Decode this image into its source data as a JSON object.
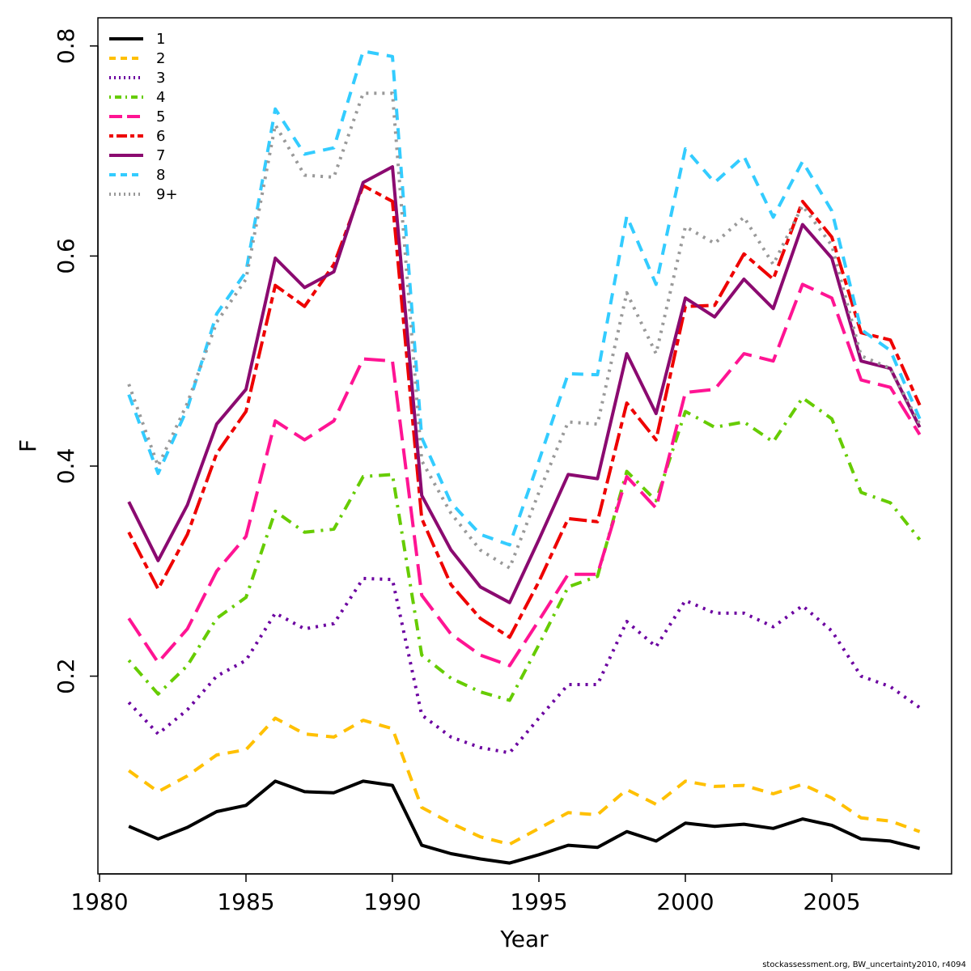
{
  "chart_data": {
    "type": "line",
    "xlabel": "Year",
    "ylabel": "F",
    "xlim": [
      1980,
      2009
    ],
    "ylim": [
      0.0,
      0.8
    ],
    "x_ticks": [
      1980,
      1985,
      1990,
      1995,
      2000,
      2005
    ],
    "y_ticks": [
      0.2,
      0.4,
      0.6,
      0.8
    ],
    "legend_position": "top-left",
    "grid": false,
    "x": [
      1981,
      1982,
      1983,
      1984,
      1985,
      1986,
      1987,
      1988,
      1989,
      1990,
      1991,
      1992,
      1993,
      1994,
      1995,
      1996,
      1997,
      1998,
      1999,
      2000,
      2001,
      2002,
      2003,
      2004,
      2005,
      2006,
      2007,
      2008
    ],
    "series": [
      {
        "name": "1",
        "color": "#000000",
        "dash": "solid",
        "values": [
          0.057,
          0.045,
          0.056,
          0.071,
          0.077,
          0.1,
          0.09,
          0.089,
          0.1,
          0.096,
          0.039,
          0.031,
          0.026,
          0.022,
          0.03,
          0.039,
          0.037,
          0.052,
          0.043,
          0.06,
          0.057,
          0.059,
          0.055,
          0.064,
          0.058,
          0.045,
          0.043,
          0.036
        ]
      },
      {
        "name": "2",
        "color": "#FFC000",
        "dash": "dashed",
        "values": [
          0.11,
          0.09,
          0.105,
          0.125,
          0.13,
          0.16,
          0.145,
          0.142,
          0.158,
          0.15,
          0.075,
          0.06,
          0.047,
          0.04,
          0.055,
          0.07,
          0.068,
          0.092,
          0.078,
          0.1,
          0.095,
          0.096,
          0.088,
          0.097,
          0.084,
          0.065,
          0.062,
          0.052
        ]
      },
      {
        "name": "3",
        "color": "#6B00A0",
        "dash": "dotted",
        "values": [
          0.175,
          0.145,
          0.168,
          0.2,
          0.215,
          0.26,
          0.245,
          0.25,
          0.293,
          0.292,
          0.163,
          0.142,
          0.132,
          0.127,
          0.16,
          0.192,
          0.192,
          0.252,
          0.228,
          0.272,
          0.26,
          0.26,
          0.247,
          0.267,
          0.243,
          0.2,
          0.19,
          0.17
        ]
      },
      {
        "name": "4",
        "color": "#66CC00",
        "dash": "dotdash",
        "values": [
          0.215,
          0.183,
          0.21,
          0.255,
          0.275,
          0.357,
          0.337,
          0.34,
          0.39,
          0.392,
          0.22,
          0.198,
          0.185,
          0.177,
          0.23,
          0.285,
          0.295,
          0.395,
          0.367,
          0.452,
          0.437,
          0.442,
          0.423,
          0.465,
          0.445,
          0.375,
          0.365,
          0.33
        ]
      },
      {
        "name": "5",
        "color": "#FF1493",
        "dash": "longdash",
        "values": [
          0.255,
          0.213,
          0.245,
          0.3,
          0.333,
          0.443,
          0.425,
          0.443,
          0.502,
          0.5,
          0.277,
          0.24,
          0.22,
          0.21,
          0.253,
          0.297,
          0.297,
          0.39,
          0.36,
          0.47,
          0.473,
          0.507,
          0.5,
          0.573,
          0.56,
          0.482,
          0.475,
          0.43
        ]
      },
      {
        "name": "6",
        "color": "#EE0000",
        "dash": "twodash",
        "values": [
          0.337,
          0.283,
          0.335,
          0.412,
          0.452,
          0.572,
          0.552,
          0.592,
          0.667,
          0.652,
          0.35,
          0.287,
          0.255,
          0.237,
          0.29,
          0.35,
          0.347,
          0.46,
          0.425,
          0.552,
          0.553,
          0.602,
          0.578,
          0.652,
          0.618,
          0.527,
          0.52,
          0.458
        ]
      },
      {
        "name": "7",
        "color": "#8B0A70",
        "dash": "solid",
        "values": [
          0.366,
          0.31,
          0.363,
          0.44,
          0.473,
          0.598,
          0.57,
          0.585,
          0.67,
          0.685,
          0.372,
          0.32,
          0.285,
          0.27,
          0.33,
          0.392,
          0.388,
          0.507,
          0.45,
          0.56,
          0.542,
          0.578,
          0.55,
          0.63,
          0.598,
          0.5,
          0.493,
          0.437
        ]
      },
      {
        "name": "8",
        "color": "#33CCFF",
        "dash": "dashed",
        "values": [
          0.468,
          0.393,
          0.455,
          0.545,
          0.585,
          0.74,
          0.697,
          0.703,
          0.795,
          0.79,
          0.427,
          0.365,
          0.335,
          0.325,
          0.405,
          0.488,
          0.487,
          0.638,
          0.573,
          0.702,
          0.67,
          0.695,
          0.637,
          0.69,
          0.643,
          0.53,
          0.51,
          0.445
        ]
      },
      {
        "name": "9+",
        "color": "#999999",
        "dash": "dotted",
        "values": [
          0.478,
          0.4,
          0.46,
          0.537,
          0.578,
          0.725,
          0.677,
          0.675,
          0.755,
          0.755,
          0.405,
          0.355,
          0.32,
          0.303,
          0.375,
          0.442,
          0.44,
          0.565,
          0.507,
          0.628,
          0.612,
          0.637,
          0.592,
          0.648,
          0.61,
          0.505,
          0.493,
          0.44
        ]
      }
    ]
  },
  "footnote": "stockassessment.org, BW_uncertainty2010, r4094"
}
